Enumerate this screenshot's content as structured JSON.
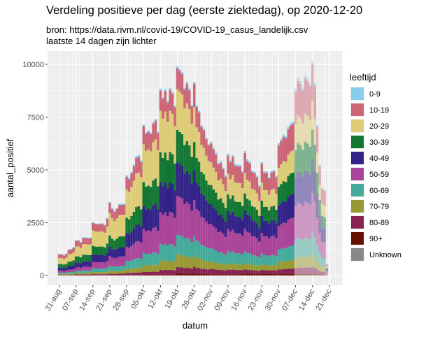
{
  "chart_data": {
    "type": "bar",
    "stacked": true,
    "title": "Verdeling positieve per dag (eerste ziektedag), op 2020-12-20",
    "subtitle": [
      "bron: https://data.rivm.nl/covid-19/COVID-19_casus_landelijk.csv",
      "laatste 14 dagen zijn lichter"
    ],
    "xlabel": "datum",
    "ylabel": "aantal_positief",
    "x_start": "2020-08-31",
    "x_end": "2020-12-20",
    "lighter_from": "2020-12-07",
    "ylim": [
      0,
      10500
    ],
    "yticks": [
      0,
      2500,
      5000,
      7500,
      10000
    ],
    "ytick_labels": [
      "0",
      "2500",
      "5000",
      "7500",
      "10000"
    ],
    "xtick_labels": [
      "31-aug",
      "07-sep",
      "14-sep",
      "21-sep",
      "28-sep",
      "05-okt",
      "12-okt",
      "19-okt",
      "26-okt",
      "02-nov",
      "09-nov",
      "16-nov",
      "23-nov",
      "30-nov",
      "07-dec",
      "14-dec",
      "21-dec"
    ],
    "grid": true,
    "legend_title": "leeftijd",
    "legend_position": "right",
    "daily_totals": [
      1020,
      1020,
      970,
      1040,
      1240,
      1260,
      1350,
      1670,
      1680,
      1590,
      1810,
      1810,
      1790,
      1800,
      2530,
      2470,
      2450,
      2470,
      2470,
      2400,
      2730,
      3480,
      3200,
      3050,
      3200,
      3380,
      3400,
      3400,
      4750,
      4630,
      4900,
      5250,
      5650,
      5700,
      5450,
      7140,
      6780,
      6870,
      6760,
      7260,
      7410,
      6810,
      8850,
      8440,
      8820,
      8270,
      8870,
      8700,
      8040,
      9910,
      9780,
      9630,
      8890,
      9160,
      8860,
      8080,
      9160,
      8060,
      7800,
      7110,
      6950,
      6520,
      6230,
      6340,
      6050,
      5810,
      5330,
      5420,
      5110,
      4740,
      5770,
      5450,
      5700,
      5280,
      5240,
      5240,
      4950,
      5890,
      5500,
      5390,
      4980,
      4910,
      4720,
      4280,
      5370,
      4930,
      4930,
      4670,
      4950,
      5000,
      4720,
      6260,
      6460,
      6660,
      6600,
      7040,
      7210,
      7280,
      8850,
      9360,
      9210,
      8890,
      9460,
      9330,
      9100,
      10160,
      9100,
      7140,
      5250,
      4160,
      4060,
      530
    ],
    "week_starts": [
      "31-aug",
      "07-sep",
      "14-sep",
      "21-sep",
      "28-sep",
      "05-okt",
      "12-okt",
      "19-okt",
      "26-okt",
      "02-nov",
      "09-nov",
      "16-nov",
      "23-nov",
      "30-nov",
      "07-dec",
      "14-dec"
    ],
    "series": [
      {
        "name": "0-9",
        "color": "#88ccee",
        "share_pct_by_week": [
          2,
          2,
          1.5,
          1.5,
          1.5,
          1,
          1,
          1,
          1,
          1.5,
          1.5,
          1.5,
          1.5,
          1.5,
          1.5,
          1.5
        ]
      },
      {
        "name": "10-19",
        "color": "#cc6677",
        "share_pct_by_week": [
          17,
          16,
          14,
          14,
          13,
          12,
          11,
          10,
          12,
          14,
          15,
          16,
          16.5,
          17,
          17.5,
          17
        ]
      },
      {
        "name": "20-29",
        "color": "#ddcc77",
        "share_pct_by_week": [
          28,
          28,
          29,
          30,
          28,
          25,
          22,
          19.5,
          18,
          17,
          17,
          16.5,
          16,
          14.5,
          14,
          13.5
        ]
      },
      {
        "name": "30-39",
        "color": "#117733",
        "share_pct_by_week": [
          17,
          17,
          16,
          15,
          15,
          16,
          16,
          15.5,
          14.5,
          14,
          13.5,
          13.5,
          13.5,
          14,
          14.5,
          14
        ]
      },
      {
        "name": "40-49",
        "color": "#332288",
        "share_pct_by_week": [
          14,
          14,
          14,
          13,
          14,
          15,
          16,
          16,
          15.5,
          15,
          15,
          15,
          15,
          15.5,
          15.5,
          15.5
        ]
      },
      {
        "name": "50-59",
        "color": "#aa4499",
        "share_pct_by_week": [
          9,
          10,
          12,
          13,
          14,
          16,
          17,
          18.5,
          18.5,
          18,
          18,
          18,
          18,
          18,
          18,
          18.5
        ]
      },
      {
        "name": "60-69",
        "color": "#44aa99",
        "share_pct_by_week": [
          6,
          6,
          7,
          7,
          8,
          8,
          9,
          9.5,
          10,
          10,
          10,
          9.5,
          9.5,
          9.5,
          9.5,
          10
        ]
      },
      {
        "name": "70-79",
        "color": "#999933",
        "share_pct_by_week": [
          4,
          4,
          4,
          4,
          4,
          4.5,
          5,
          6,
          6,
          5.5,
          5,
          5,
          5,
          5.5,
          5.5,
          6
        ]
      },
      {
        "name": "80-89",
        "color": "#882255",
        "share_pct_by_week": [
          2,
          2,
          2,
          2,
          2,
          2,
          2.5,
          3,
          3.5,
          4,
          4,
          3.5,
          3.5,
          3.5,
          3,
          3
        ]
      },
      {
        "name": "90+",
        "color": "#661100",
        "share_pct_by_week": [
          1,
          1,
          0.5,
          0.5,
          0.5,
          0.5,
          0.5,
          1,
          1,
          1,
          1,
          1.5,
          1.5,
          1,
          1,
          1
        ]
      },
      {
        "name": "Unknown",
        "color": "#888888",
        "share_pct_by_week": [
          0,
          0,
          0,
          0,
          0,
          0,
          0,
          0,
          0,
          0,
          0,
          0,
          0,
          0,
          0,
          0
        ]
      }
    ]
  }
}
